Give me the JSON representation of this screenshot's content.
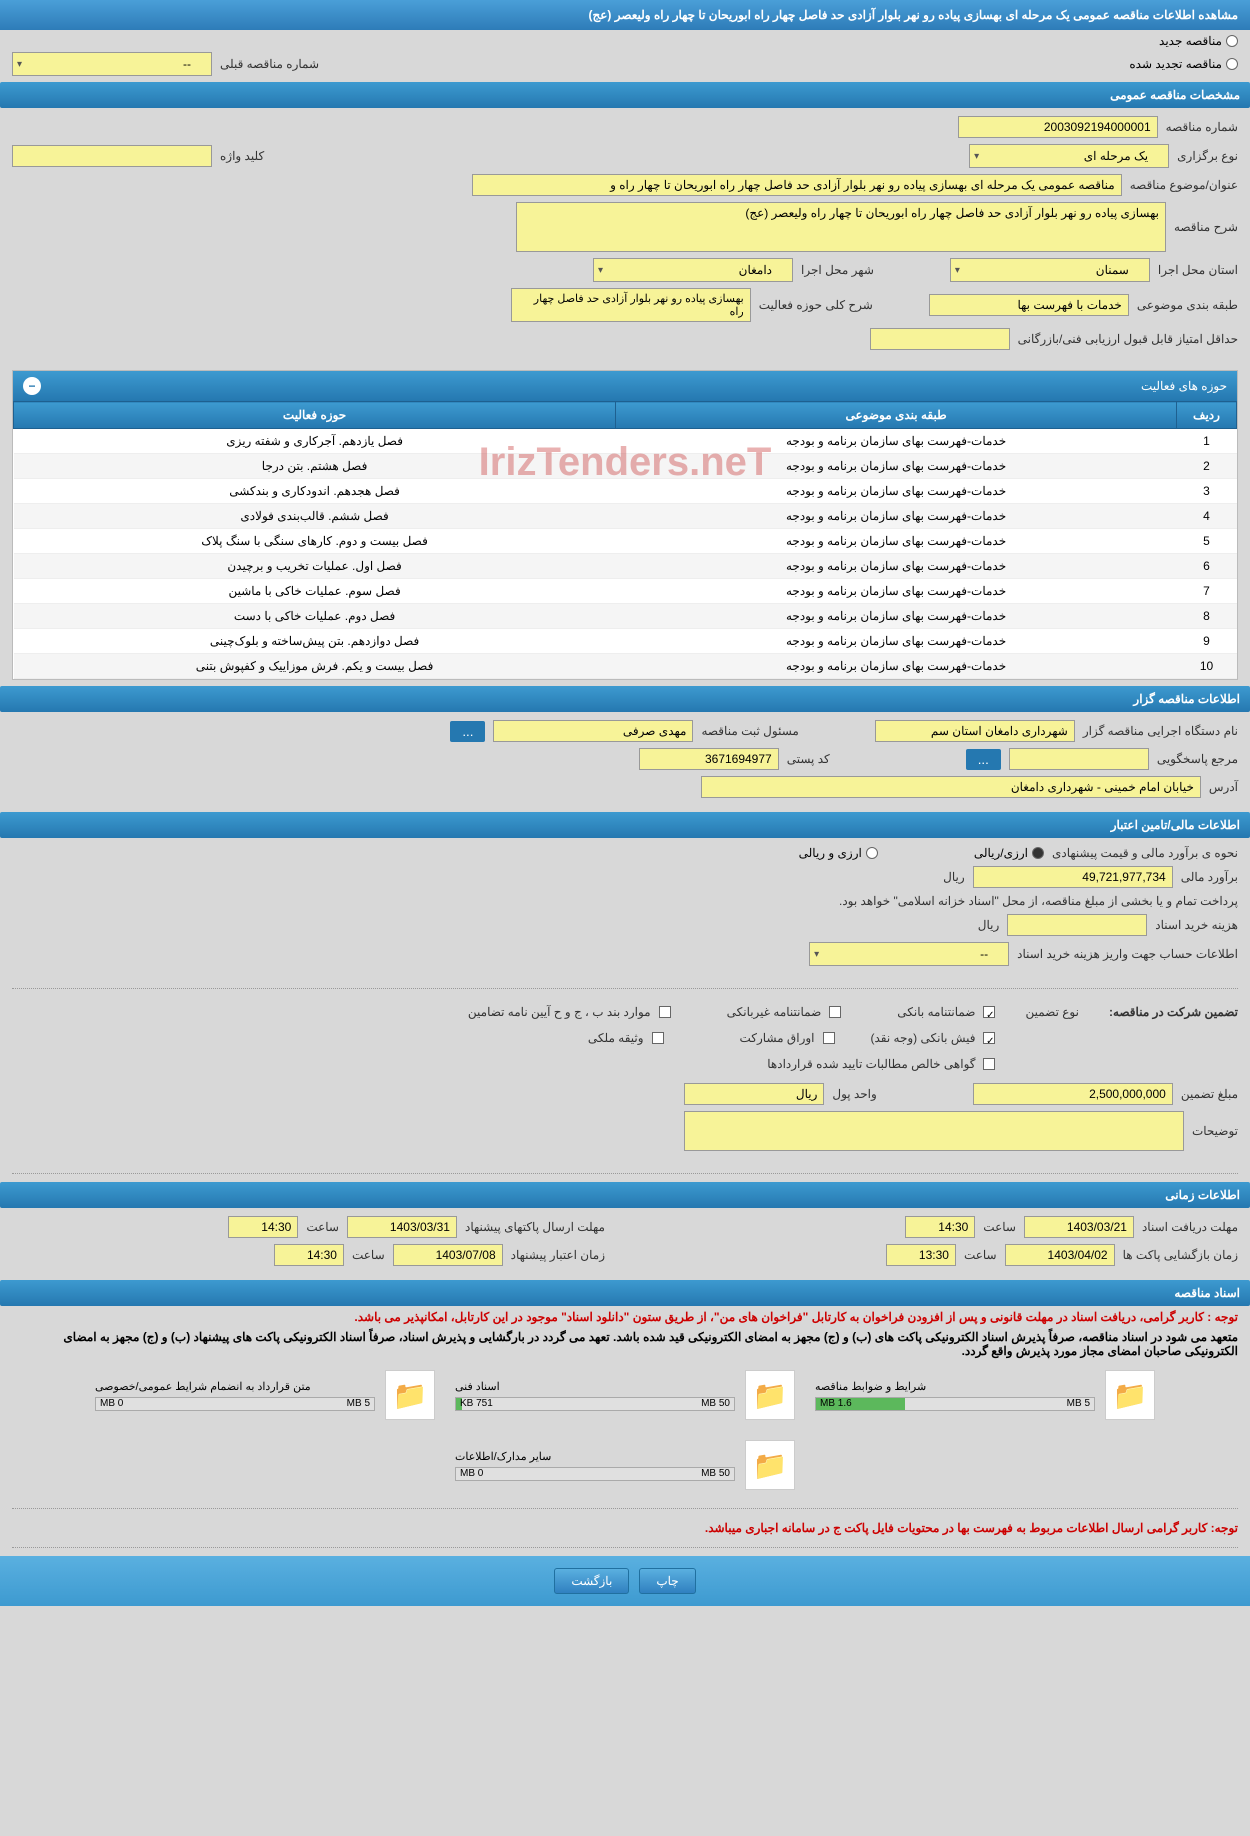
{
  "title": "مشاهده اطلاعات مناقصه عمومی یک مرحله ای بهسازی پیاده رو نهر بلوار آزادی حد فاصل چهار راه ابوریحان تا چهار راه ولیعصر (عج)",
  "radio_new": "مناقصه جدید",
  "radio_renewed": "مناقصه تجدید شده",
  "prev_number_label": "شماره مناقصه قبلی",
  "prev_number_value": "--",
  "sections": {
    "general": "مشخصات مناقصه عمومی",
    "holder": "اطلاعات مناقصه گزار",
    "financial": "اطلاعات مالی/تامین اعتبار",
    "guarantee_row": "تضمین شرکت در مناقصه:",
    "timing": "اطلاعات زمانی",
    "documents": "اسناد مناقصه"
  },
  "general": {
    "number_label": "شماره مناقصه",
    "number": "2003092194000001",
    "type_label": "نوع برگزاری",
    "type": "یک مرحله ای",
    "keyword_label": "کلید واژه",
    "keyword": "",
    "subject_label": "عنوان/موضوع مناقصه",
    "subject": "مناقصه عمومی یک مرحله ای بهسازی پیاده رو نهر بلوار آزادی حد فاصل چهار راه ابوریحان تا چهار راه و",
    "desc_label": "شرح مناقصه",
    "desc": "بهسازی پیاده رو نهر بلوار آزادی حد فاصل چهار راه ابوریحان تا چهار راه ولیعصر (عج)",
    "province_label": "استان محل اجرا",
    "province": "سمنان",
    "city_label": "شهر محل اجرا",
    "city": "دامغان",
    "topic_label": "طبقه بندی موضوعی",
    "topic": "خدمات با فهرست بها",
    "activity_desc_label": "شرح کلی حوزه فعالیت",
    "activity_desc": "بهسازی پیاده رو نهر بلوار آزادی حد فاصل چهار راه",
    "min_score_label": "حداقل امتیاز قابل قبول ارزیابی فنی/بازرگانی",
    "min_score": ""
  },
  "activity_table": {
    "title": "حوزه های فعالیت",
    "col_row": "ردیف",
    "col_topic": "طبقه بندی موضوعی",
    "col_activity": "حوزه فعالیت",
    "topic_text": "خدمات-فهرست بهای سازمان برنامه و بودجه",
    "rows": [
      {
        "n": "1",
        "act": "فصل یازدهم. آجرکاری و شفته ریزی"
      },
      {
        "n": "2",
        "act": "فصل هشتم. بتن درجا"
      },
      {
        "n": "3",
        "act": "فصل هجدهم. اندودکاری و بندکشی"
      },
      {
        "n": "4",
        "act": "فصل ششم. قالب‌بندی فولادی"
      },
      {
        "n": "5",
        "act": "فصل بیست و دوم. کارهای سنگی با سنگ پلاک"
      },
      {
        "n": "6",
        "act": "فصل اول. عملیات تخریب و برچیدن"
      },
      {
        "n": "7",
        "act": "فصل سوم. عملیات خاکی با ماشین"
      },
      {
        "n": "8",
        "act": "فصل دوم. عملیات خاکی با دست"
      },
      {
        "n": "9",
        "act": "فصل دوازدهم. بتن پیش‌ساخته و بلوک‌چینی"
      },
      {
        "n": "10",
        "act": "فصل بیست و یکم. فرش موزاییک و کفپوش بتنی"
      }
    ]
  },
  "holder": {
    "org_label": "نام دستگاه اجرایی مناقصه گزار",
    "org": "شهرداری دامغان استان سم",
    "responsible_label": "مسئول ثبت مناقصه",
    "responsible": "مهدی صرفی",
    "contact_label": "مرجع پاسخگویی",
    "contact": "",
    "postal_label": "کد پستی",
    "postal": "3671694977",
    "address_label": "آدرس",
    "address": "خیابان امام خمینی - شهرداری دامغان"
  },
  "financial": {
    "method_label": "نحوه ی برآورد مالی و قیمت پیشنهادی",
    "opt_arzi": "ارزی/ریالی",
    "opt_both": "ارزی و ریالی",
    "estimate_label": "برآورد مالی",
    "estimate": "49,721,977,734",
    "rial": "ریال",
    "payment_note": "پرداخت تمام و یا بخشی از مبلغ مناقصه، از محل \"اسناد خزانه اسلامی\" خواهد بود.",
    "doc_cost_label": "هزینه خرید اسناد",
    "doc_cost": "",
    "account_label": "اطلاعات حساب جهت واریز هزینه خرید اسناد",
    "account": "--"
  },
  "guarantee": {
    "type_label": "نوع تضمین",
    "g1": "ضمانتنامه بانکی",
    "g2": "ضمانتنامه غیربانکی",
    "g3": "موارد بند ب ، ج و ح آیین نامه تضامین",
    "g4": "فیش بانکی (وجه نقد)",
    "g5": "اوراق مشارکت",
    "g6": "وثیقه ملکی",
    "g7": "گواهی خالص مطالبات تایید شده قراردادها",
    "amount_label": "مبلغ تضمین",
    "amount": "2,500,000,000",
    "unit_label": "واحد پول",
    "unit": "ریال",
    "desc_label": "توضیحات",
    "desc": ""
  },
  "timing": {
    "receive_label": "مهلت دریافت اسناد",
    "receive_date": "1403/03/21",
    "receive_time_label": "ساعت",
    "receive_time": "14:30",
    "send_label": "مهلت ارسال پاکتهای پیشنهاد",
    "send_date": "1403/03/31",
    "send_time": "14:30",
    "open_label": "زمان بازگشایی پاکت ها",
    "open_date": "1403/04/02",
    "open_time": "13:30",
    "validity_label": "زمان اعتبار پیشنهاد",
    "validity_date": "1403/07/08",
    "validity_time": "14:30"
  },
  "notes": {
    "n1": "توجه : کاربر گرامی، دریافت اسناد در مهلت قانونی و پس از افزودن فراخوان به کارتابل \"فراخوان های من\"، از طریق ستون \"دانلود اسناد\" موجود در این کارتابل، امکانپذیر می باشد.",
    "n2": "متعهد می شود در اسناد مناقصه، صرفاً پذیرش اسناد الکترونیکی پاکت های (ب) و (ج) مجهز به امضای الکترونیکی قید شده باشد. تعهد می گردد در بارگشایی و پذیرش اسناد، صرفاً اسناد الکترونیکی پاکت های پیشنهاد (ب) و (ج) مجهز به امضای الکترونیکی صاحبان امضای مجاز مورد پذیرش واقع گردد.",
    "n3": "توجه: کاربر گرامی ارسال اطلاعات مربوط به فهرست بها در محتویات فایل پاکت ج در سامانه اجباری میباشد."
  },
  "docs": [
    {
      "title": "شرایط و ضوابط مناقصه",
      "used": "1.6 MB",
      "total": "5 MB",
      "fill": 32
    },
    {
      "title": "اسناد فنی",
      "used": "751 KB",
      "total": "50 MB",
      "fill": 2
    },
    {
      "title": "متن قرارداد به انضمام شرایط عمومی/خصوصی",
      "used": "0 MB",
      "total": "5 MB",
      "fill": 0
    },
    {
      "title": "سایر مدارک/اطلاعات",
      "used": "0 MB",
      "total": "50 MB",
      "fill": 0
    }
  ],
  "buttons": {
    "print": "چاپ",
    "back": "بازگشت",
    "ellipsis": "..."
  },
  "watermark": "IrizTenders.neT"
}
